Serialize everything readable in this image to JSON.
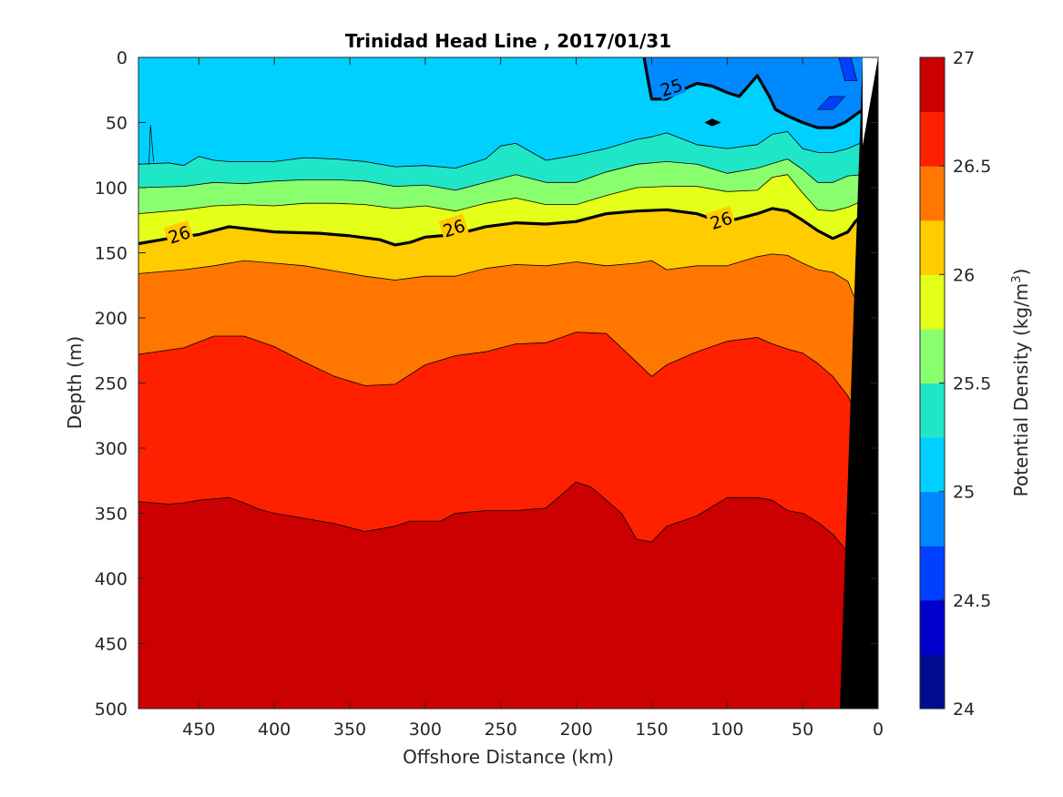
{
  "chart_data": {
    "type": "contour",
    "title": "Trinidad Head Line , 2017/01/31",
    "xlabel": "Offshore Distance (km)",
    "ylabel": "Depth (m)",
    "xlim": [
      490,
      0
    ],
    "ylim": [
      0,
      500
    ],
    "x_reversed": true,
    "y_reversed": true,
    "x_ticks": [
      "450",
      "400",
      "350",
      "300",
      "250",
      "200",
      "150",
      "100",
      "50",
      "0"
    ],
    "x_tick_values": [
      450,
      400,
      350,
      300,
      250,
      200,
      150,
      100,
      50,
      0
    ],
    "y_ticks": [
      "0",
      "50",
      "100",
      "150",
      "200",
      "250",
      "300",
      "350",
      "400",
      "450",
      "500"
    ],
    "y_tick_values": [
      0,
      50,
      100,
      150,
      200,
      250,
      300,
      350,
      400,
      450,
      500
    ],
    "colorbar": {
      "label": "Potential Density (kg/m",
      "label_superscript": "3",
      "label_suffix": ")",
      "range": [
        24,
        27
      ],
      "ticks": [
        "24",
        "24.5",
        "25",
        "25.5",
        "26",
        "26.5",
        "27"
      ],
      "tick_values": [
        24,
        24.5,
        25,
        25.5,
        26,
        26.5,
        27
      ],
      "levels": [
        24,
        24.25,
        24.5,
        24.75,
        25,
        25.25,
        25.5,
        25.75,
        26,
        26.25,
        26.5,
        26.75,
        27
      ],
      "colors": [
        "#000c8f",
        "#0000cc",
        "#0040ff",
        "#0088ff",
        "#00d0ff",
        "#20e6c8",
        "#8aff6e",
        "#e4ff18",
        "#ffcc00",
        "#ff7700",
        "#ff2000",
        "#cc0000"
      ]
    },
    "contour_labels": [
      {
        "text": "25",
        "x": 137,
        "y": 23
      },
      {
        "text": "26",
        "x": 463,
        "y": 136
      },
      {
        "text": "26",
        "x": 281,
        "y": 131
      },
      {
        "text": "26",
        "x": 104,
        "y": 125
      }
    ],
    "isopycnals": [
      {
        "level": 25.0,
        "x": [
          155,
          152,
          150,
          140,
          130,
          120,
          110,
          100,
          92,
          86,
          80,
          77,
          72,
          68,
          60,
          50,
          40,
          30,
          22,
          10
        ],
        "depth": [
          0,
          20,
          32,
          32,
          25,
          20,
          22,
          27,
          30,
          22,
          14,
          20,
          30,
          40,
          45,
          50,
          54,
          54,
          50,
          40
        ]
      },
      {
        "level": 25.25,
        "x": [
          490,
          470,
          460,
          450,
          440,
          430,
          400,
          380,
          360,
          340,
          320,
          300,
          280,
          260,
          250,
          240,
          220,
          200,
          180,
          160,
          150,
          140,
          120,
          100,
          80,
          70,
          60,
          50,
          40,
          30,
          20,
          10
        ],
        "depth": [
          82,
          81,
          83,
          76,
          79,
          80,
          80,
          77,
          78,
          80,
          84,
          83,
          85,
          78,
          68,
          66,
          79,
          75,
          70,
          63,
          61,
          58,
          67,
          70,
          67,
          59,
          57,
          70,
          73,
          73,
          70,
          65
        ]
      },
      {
        "level": 25.5,
        "x": [
          490,
          460,
          440,
          420,
          400,
          380,
          360,
          340,
          320,
          300,
          280,
          260,
          240,
          220,
          200,
          180,
          160,
          140,
          120,
          100,
          80,
          60,
          50,
          40,
          30,
          20,
          10
        ],
        "depth": [
          100,
          99,
          96,
          97,
          95,
          94,
          94,
          95,
          99,
          98,
          102,
          96,
          90,
          96,
          96,
          88,
          82,
          80,
          82,
          89,
          85,
          78,
          86,
          96,
          96,
          91,
          90
        ]
      },
      {
        "level": 25.75,
        "x": [
          490,
          460,
          440,
          420,
          400,
          380,
          360,
          340,
          320,
          300,
          280,
          260,
          240,
          220,
          200,
          180,
          160,
          140,
          120,
          100,
          80,
          70,
          60,
          50,
          40,
          30,
          20,
          10
        ],
        "depth": [
          120,
          117,
          114,
          113,
          114,
          112,
          112,
          113,
          116,
          114,
          118,
          112,
          108,
          113,
          113,
          106,
          100,
          99,
          99,
          103,
          102,
          92,
          90,
          104,
          117,
          118,
          115,
          110
        ]
      },
      {
        "level": 26.0,
        "x": [
          490,
          470,
          450,
          430,
          400,
          370,
          350,
          330,
          320,
          310,
          300,
          280,
          260,
          240,
          220,
          200,
          180,
          160,
          140,
          120,
          110,
          100,
          80,
          70,
          60,
          50,
          40,
          30,
          20,
          15,
          10
        ],
        "depth": [
          143,
          139,
          136,
          130,
          134,
          135,
          137,
          140,
          144,
          142,
          138,
          136,
          130,
          127,
          128,
          126,
          120,
          118,
          117,
          120,
          124,
          126,
          120,
          116,
          118,
          125,
          133,
          139,
          134,
          126,
          120
        ]
      },
      {
        "level": 26.25,
        "x": [
          490,
          460,
          440,
          420,
          400,
          380,
          360,
          340,
          320,
          300,
          280,
          260,
          240,
          220,
          200,
          180,
          160,
          150,
          140,
          120,
          100,
          80,
          70,
          60,
          50,
          40,
          30,
          20,
          15
        ],
        "depth": [
          166,
          163,
          160,
          156,
          158,
          160,
          164,
          168,
          171,
          168,
          168,
          162,
          159,
          160,
          157,
          160,
          158,
          156,
          163,
          160,
          160,
          153,
          151,
          152,
          158,
          163,
          165,
          172,
          186
        ]
      },
      {
        "level": 26.5,
        "x": [
          490,
          460,
          440,
          420,
          400,
          380,
          360,
          340,
          320,
          300,
          280,
          260,
          240,
          220,
          200,
          180,
          160,
          150,
          140,
          120,
          100,
          80,
          70,
          60,
          50,
          40,
          30,
          20,
          15
        ],
        "depth": [
          228,
          223,
          214,
          214,
          222,
          234,
          245,
          252,
          251,
          236,
          229,
          226,
          220,
          219,
          211,
          212,
          234,
          245,
          236,
          226,
          218,
          215,
          220,
          224,
          227,
          235,
          245,
          260,
          272
        ]
      },
      {
        "level": 26.75,
        "x": [
          490,
          470,
          460,
          450,
          430,
          420,
          410,
          400,
          380,
          360,
          340,
          320,
          310,
          290,
          280,
          260,
          240,
          220,
          210,
          200,
          190,
          170,
          160,
          150,
          140,
          120,
          100,
          80,
          70,
          60,
          50,
          40,
          30,
          20
        ],
        "depth": [
          341,
          343,
          342,
          340,
          338,
          342,
          347,
          350,
          354,
          358,
          364,
          360,
          356,
          356,
          350,
          348,
          348,
          346,
          336,
          326,
          330,
          350,
          370,
          372,
          360,
          352,
          338,
          338,
          340,
          348,
          350,
          357,
          366,
          380
        ]
      }
    ]
  }
}
